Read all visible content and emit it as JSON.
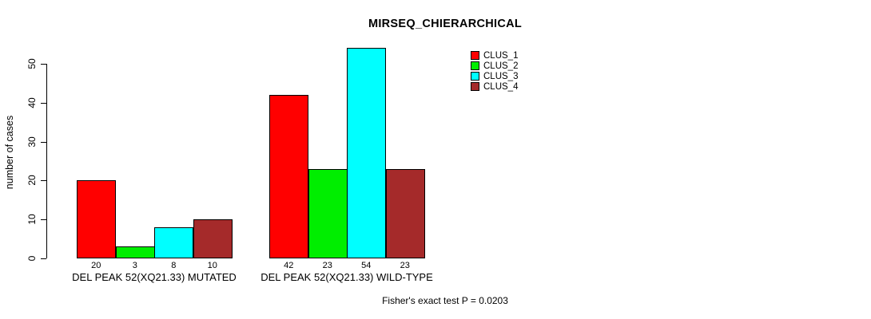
{
  "title": "MIRSEQ_CHIERARCHICAL",
  "footer": "Fisher's exact test P = 0.0203",
  "chart_data": {
    "type": "bar",
    "title": "MIRSEQ_CHIERARCHICAL",
    "xlabel": "",
    "ylabel": "number of cases",
    "ylim": [
      0,
      50
    ],
    "yticks": [
      0,
      10,
      20,
      30,
      40,
      50
    ],
    "grid": false,
    "legend_position": "top-right",
    "categories": [
      "DEL PEAK 52(XQ21.33) MUTATED",
      "DEL PEAK 52(XQ21.33) WILD-TYPE"
    ],
    "groups": [
      {
        "label": "DEL PEAK 52(XQ21.33) MUTATED",
        "values": [
          20,
          3,
          8,
          10
        ]
      },
      {
        "label": "DEL PEAK 52(XQ21.33) WILD-TYPE",
        "values": [
          42,
          23,
          54,
          23
        ]
      }
    ],
    "series": [
      {
        "name": "CLUS_1",
        "color": "#ff0000"
      },
      {
        "name": "CLUS_2",
        "color": "#00ee00"
      },
      {
        "name": "CLUS_3",
        "color": "#00ffff"
      },
      {
        "name": "CLUS_4",
        "color": "#a52a2a"
      }
    ],
    "annotation": "Fisher's exact test P = 0.0203"
  }
}
